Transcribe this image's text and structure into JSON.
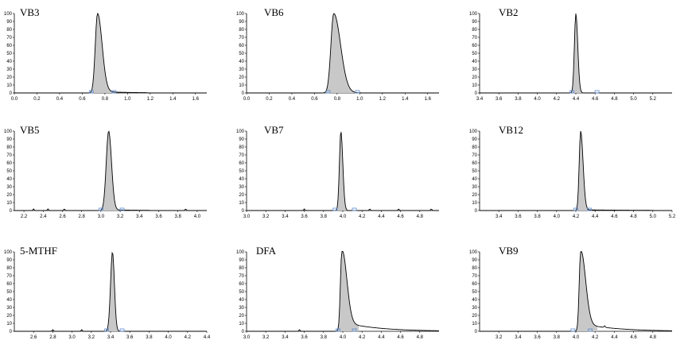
{
  "chart_data": [
    {
      "type": "line",
      "title": "VB3",
      "xlim": [
        0.0,
        1.7
      ],
      "ylim": [
        0,
        100
      ],
      "xticks": [
        "0.0",
        "0.2",
        "0.4",
        "0.6",
        "0.8",
        "1.0",
        "1.2",
        "1.4",
        "1.6"
      ],
      "yticks": [
        "0",
        "10",
        "20",
        "30",
        "40",
        "50",
        "60",
        "70",
        "80",
        "90",
        "100"
      ],
      "peak": {
        "center": 0.735,
        "height": 100,
        "rise_width": 0.02,
        "fall_width": 0.04
      },
      "tail": {
        "level": 2,
        "decay": 0.25,
        "end": 1.18
      },
      "noise_points": [],
      "markers": [
        0.68,
        0.88
      ]
    },
    {
      "type": "line",
      "title": "VB6",
      "xlim": [
        0.0,
        1.7
      ],
      "ylim": [
        0,
        100
      ],
      "xticks": [
        "0.0",
        "0.2",
        "0.4",
        "0.6",
        "0.8",
        "1.0",
        "1.2",
        "1.4",
        "1.6"
      ],
      "yticks": [
        "0",
        "10",
        "20",
        "30",
        "40",
        "50",
        "60",
        "70",
        "80",
        "90",
        "100"
      ],
      "peak": {
        "center": 0.77,
        "height": 100,
        "rise_width": 0.025,
        "fall_width": 0.06
      },
      "tail": {
        "level": 1,
        "decay": 0.1,
        "end": 1.02
      },
      "noise_points": [],
      "markers": [
        0.72,
        0.98
      ]
    },
    {
      "type": "line",
      "title": "VB2",
      "xlim": [
        3.4,
        5.4
      ],
      "ylim": [
        0,
        100
      ],
      "xticks": [
        "3.4",
        "3.6",
        "3.8",
        "4.0",
        "4.2",
        "4.4",
        "4.6",
        "4.8",
        "5.0",
        "5.2"
      ],
      "yticks": [
        "0",
        "10",
        "20",
        "30",
        "40",
        "50",
        "60",
        "70",
        "80",
        "90",
        "100"
      ],
      "peak": {
        "center": 4.4,
        "height": 100,
        "rise_width": 0.015,
        "fall_width": 0.02
      },
      "tail": {
        "level": 0,
        "decay": 0.1,
        "end": 5.4
      },
      "noise_points": [],
      "markers": [
        4.36,
        4.62
      ]
    },
    {
      "type": "line",
      "title": "VB5",
      "xlim": [
        2.1,
        4.1
      ],
      "ylim": [
        0,
        100
      ],
      "xticks": [
        "2.2",
        "2.4",
        "2.6",
        "2.8",
        "3.0",
        "3.2",
        "3.4",
        "3.6",
        "3.8",
        "4.0"
      ],
      "yticks": [
        "0",
        "10",
        "20",
        "30",
        "40",
        "50",
        "60",
        "70",
        "80",
        "90",
        "100"
      ],
      "peak": {
        "center": 3.08,
        "height": 100,
        "rise_width": 0.025,
        "fall_width": 0.03
      },
      "tail": {
        "level": 1,
        "decay": 0.3,
        "end": 3.5
      },
      "noise_points": [
        2.3,
        2.45,
        2.62,
        3.88
      ],
      "markers": [
        3.0,
        3.22
      ]
    },
    {
      "type": "line",
      "title": "VB7",
      "xlim": [
        3.0,
        5.0
      ],
      "ylim": [
        0,
        100
      ],
      "xticks": [
        "3.0",
        "3.2",
        "3.4",
        "3.6",
        "3.8",
        "4.0",
        "4.2",
        "4.4",
        "4.6",
        "4.8"
      ],
      "yticks": [
        "0",
        "10",
        "20",
        "30",
        "40",
        "50",
        "60",
        "70",
        "80",
        "90",
        "100"
      ],
      "peak": {
        "center": 3.98,
        "height": 100,
        "rise_width": 0.015,
        "fall_width": 0.02
      },
      "tail": {
        "level": 0,
        "decay": 0.1,
        "end": 5.0
      },
      "noise_points": [
        3.6,
        4.28,
        4.58,
        4.92
      ],
      "markers": [
        3.92,
        4.12
      ]
    },
    {
      "type": "line",
      "title": "VB12",
      "xlim": [
        3.2,
        5.2
      ],
      "ylim": [
        0,
        100
      ],
      "xticks": [
        "3.4",
        "3.6",
        "3.8",
        "4.0",
        "4.2",
        "4.4",
        "4.6",
        "4.8",
        "5.0",
        "5.2"
      ],
      "yticks": [
        "0",
        "10",
        "20",
        "30",
        "40",
        "50",
        "60",
        "70",
        "80",
        "90",
        "100"
      ],
      "peak": {
        "center": 4.25,
        "height": 100,
        "rise_width": 0.015,
        "fall_width": 0.025
      },
      "tail": {
        "level": 1,
        "decay": 0.5,
        "end": 5.0
      },
      "noise_points": [],
      "markers": [
        4.2,
        4.34
      ]
    },
    {
      "type": "line",
      "title": "5-MTHF",
      "xlim": [
        2.4,
        4.4
      ],
      "ylim": [
        0,
        100
      ],
      "xticks": [
        "2.6",
        "2.8",
        "3.0",
        "3.2",
        "3.4",
        "3.6",
        "3.8",
        "4.0",
        "4.2",
        "4.4"
      ],
      "yticks": [
        "0",
        "10",
        "20",
        "30",
        "40",
        "50",
        "60",
        "70",
        "80",
        "90",
        "100"
      ],
      "peak": {
        "center": 3.42,
        "height": 100,
        "rise_width": 0.02,
        "fall_width": 0.02
      },
      "tail": {
        "level": 0,
        "decay": 0.1,
        "end": 4.4
      },
      "noise_points": [
        2.8,
        3.1
      ],
      "markers": [
        3.36,
        3.52
      ]
    },
    {
      "type": "line",
      "title": "DFA",
      "xlim": [
        3.0,
        5.0
      ],
      "ylim": [
        0,
        100
      ],
      "xticks": [
        "3.0",
        "3.2",
        "3.4",
        "3.6",
        "3.8",
        "4.0",
        "4.2",
        "4.4",
        "4.6",
        "4.8"
      ],
      "yticks": [
        "0",
        "10",
        "20",
        "30",
        "40",
        "50",
        "60",
        "70",
        "80",
        "90",
        "100"
      ],
      "peak": {
        "center": 3.99,
        "height": 100,
        "rise_width": 0.015,
        "fall_width": 0.05
      },
      "tail": {
        "level": 12,
        "decay": 0.35,
        "end": 5.0
      },
      "noise_points": [
        3.55
      ],
      "markers": [
        3.95,
        4.12
      ]
    },
    {
      "type": "line",
      "title": "VB9",
      "xlim": [
        3.0,
        5.0
      ],
      "ylim": [
        0,
        100
      ],
      "xticks": [
        "3.2",
        "3.4",
        "3.6",
        "3.8",
        "4.0",
        "4.2",
        "4.4",
        "4.6",
        "4.8"
      ],
      "yticks": [
        "0",
        "10",
        "20",
        "30",
        "40",
        "50",
        "60",
        "70",
        "80",
        "90",
        "100"
      ],
      "peak": {
        "center": 4.05,
        "height": 100,
        "rise_width": 0.015,
        "fall_width": 0.05
      },
      "tail": {
        "level": 10,
        "decay": 0.35,
        "end": 5.0
      },
      "noise_points": [
        4.3
      ],
      "markers": [
        3.97,
        4.15
      ]
    }
  ]
}
